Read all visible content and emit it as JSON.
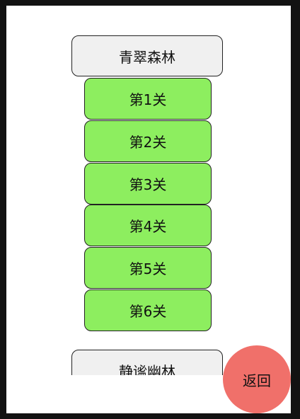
{
  "worlds": [
    {
      "title": "青翠森林",
      "levels": [
        "第1关",
        "第2关",
        "第3关",
        "第4关",
        "第5关",
        "第6关"
      ]
    },
    {
      "title": "静谧幽林",
      "levels": []
    }
  ],
  "back_button": {
    "label": "返回"
  },
  "colors": {
    "level_button": "#8dee5f",
    "world_header": "#f0f0f0",
    "back_button": "#f0706a"
  }
}
